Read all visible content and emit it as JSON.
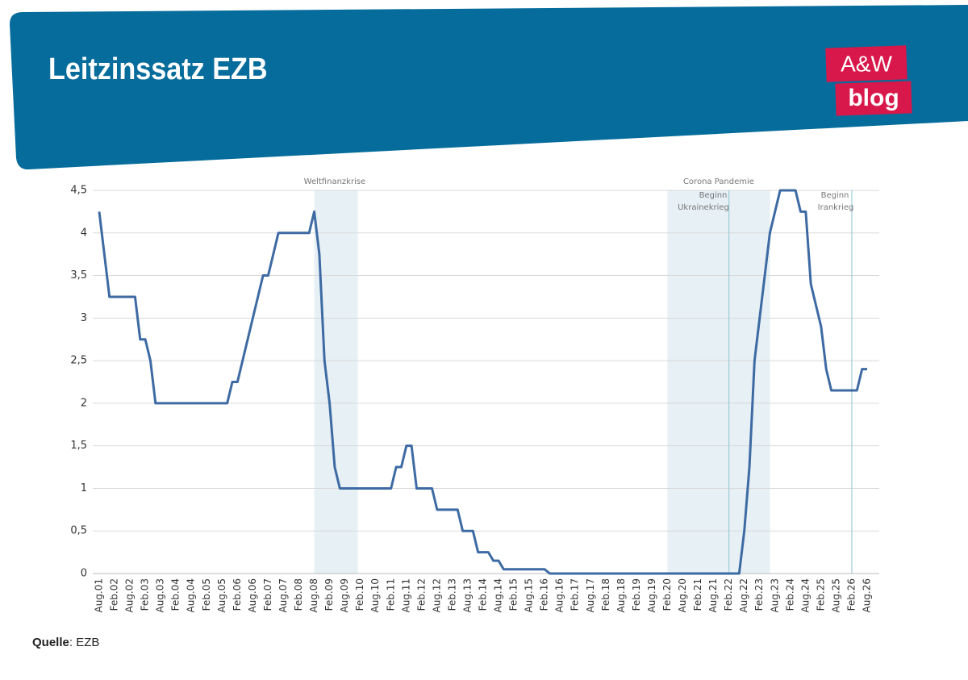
{
  "header": {
    "title": "Leitzinssatz EZB",
    "logo": [
      "A&W",
      "blog"
    ]
  },
  "chart_data": {
    "type": "line",
    "categories": [
      "Aug.01",
      null,
      null,
      "Feb.02",
      null,
      null,
      "Aug.02",
      null,
      null,
      "Feb.03",
      null,
      null,
      "Aug.03",
      null,
      null,
      "Feb.04",
      null,
      null,
      "Aug.04",
      null,
      null,
      "Feb.05",
      null,
      null,
      "Aug.05",
      null,
      null,
      "Feb.06",
      null,
      null,
      "Aug.06",
      null,
      null,
      "Feb.07",
      null,
      null,
      "Aug.07",
      null,
      null,
      "Feb.08",
      null,
      null,
      "Aug.08",
      null,
      null,
      "Feb.09",
      null,
      null,
      "Aug.09",
      null,
      null,
      "Feb.10",
      null,
      null,
      "Aug.10",
      null,
      null,
      "Feb.11",
      null,
      null,
      "Aug.11",
      null,
      null,
      "Feb.12",
      null,
      null,
      "Aug.12",
      null,
      null,
      "Feb.13",
      null,
      null,
      "Aug.13",
      null,
      null,
      "Feb.14",
      null,
      null,
      "Aug.14",
      null,
      null,
      "Feb.15",
      null,
      null,
      "Aug.15",
      null,
      null,
      "Feb.16",
      null,
      null,
      "Aug.16",
      null,
      null,
      "Feb.17",
      null,
      null,
      "Aug.17",
      null,
      null,
      "Feb.18",
      null,
      null,
      "Aug.18",
      null,
      null,
      "Feb.19",
      null,
      null,
      "Aug.19",
      null,
      null,
      "Feb.20",
      null,
      null,
      "Aug.20",
      null,
      null,
      "Feb.21",
      null,
      null,
      "Aug.21",
      null,
      null,
      "Feb.22",
      null,
      null,
      "Aug.22",
      null,
      null,
      "Feb.23",
      null,
      null,
      "Aug.23",
      null,
      null,
      "Feb.24",
      null,
      null,
      "Aug.24",
      null,
      null,
      "Feb.25",
      null,
      null,
      "Aug.25",
      null,
      null,
      "Feb.26",
      null,
      null,
      "Aug.26"
    ],
    "series": [
      {
        "name": "Leitzinssatz",
        "color": "#3d6aa3",
        "values": [
          4.25,
          3.75,
          3.25,
          3.25,
          3.25,
          3.25,
          3.25,
          3.25,
          2.75,
          2.75,
          2.5,
          2,
          2,
          2,
          2,
          2,
          2,
          2,
          2,
          2,
          2,
          2,
          2,
          2,
          2,
          2,
          2.25,
          2.25,
          2.5,
          2.75,
          3,
          3.25,
          3.5,
          3.5,
          3.75,
          4,
          4,
          4,
          4,
          4,
          4,
          4,
          4.25,
          3.75,
          2.5,
          2,
          1.25,
          1,
          1,
          1,
          1,
          1,
          1,
          1,
          1,
          1,
          1,
          1,
          1.25,
          1.25,
          1.5,
          1.5,
          1,
          1,
          1,
          1,
          0.75,
          0.75,
          0.75,
          0.75,
          0.75,
          0.5,
          0.5,
          0.5,
          0.25,
          0.25,
          0.25,
          0.15,
          0.15,
          0.05,
          0.05,
          0.05,
          0.05,
          0.05,
          0.05,
          0.05,
          0.05,
          0.05,
          0,
          0,
          0,
          0,
          0,
          0,
          0,
          0,
          0,
          0,
          0,
          0,
          0,
          0,
          0,
          0,
          0,
          0,
          0,
          0,
          0,
          0,
          0,
          0,
          0,
          0,
          0,
          0,
          0,
          0,
          0,
          0,
          0,
          0,
          0,
          0,
          0,
          0,
          0.5,
          1.25,
          2.5,
          3,
          3.5,
          4,
          4.25,
          4.5,
          4.5,
          4.5,
          4.5,
          4.25,
          4.25,
          3.4,
          3.15,
          2.9,
          2.4,
          2.15,
          2.15,
          2.15,
          2.15,
          2.15,
          2.15,
          2.4,
          2.4
        ]
      }
    ],
    "ylim": [
      0,
      4.5
    ],
    "yticks": [
      0,
      {
        "value": 0.5,
        "label": "0,5"
      },
      1,
      {
        "value": 1.5,
        "label": "1,5"
      },
      2,
      {
        "value": 2.5,
        "label": "2,5"
      },
      3,
      {
        "value": 3.5,
        "label": "3,5"
      },
      4,
      {
        "value": 4.5,
        "label": "4,5"
      }
    ],
    "grid": true,
    "annotations": {
      "crisis": "Weltfinanzkrise",
      "corona": "Corona Pandemie",
      "ukraine": [
        "Beginn",
        "Ukrainekrieg"
      ],
      "iran": [
        "Beginn",
        "Irankrieg"
      ]
    }
  },
  "source": {
    "label": "Quelle",
    "text": ": EZB"
  }
}
